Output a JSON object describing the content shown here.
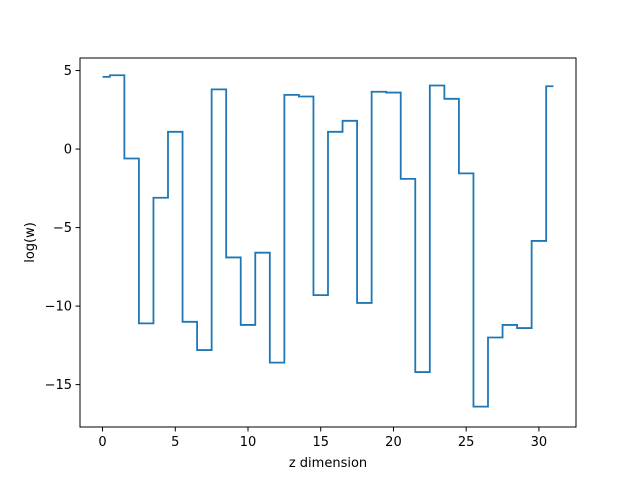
{
  "chart_data": {
    "type": "line",
    "drawstyle": "steps-mid",
    "title": "",
    "xlabel": "z dimension",
    "ylabel": "log(w)",
    "xlim": [
      -1.55,
      32.55
    ],
    "ylim": [
      -17.7,
      5.8
    ],
    "xticks": [
      0,
      5,
      10,
      15,
      20,
      25,
      30
    ],
    "yticks": [
      5,
      0,
      -5,
      -10,
      -15
    ],
    "xtick_labels": [
      "0",
      "5",
      "10",
      "15",
      "20",
      "25",
      "30"
    ],
    "ytick_labels": [
      "5",
      "0",
      "−5",
      "−10",
      "−15"
    ],
    "grid": false,
    "series": [
      {
        "color": "#1f77b4",
        "x": [
          0,
          1,
          2,
          3,
          4,
          5,
          6,
          7,
          8,
          9,
          10,
          11,
          12,
          13,
          14,
          15,
          16,
          17,
          18,
          19,
          20,
          21,
          22,
          23,
          24,
          25,
          26,
          27,
          28,
          29,
          30,
          31
        ],
        "y": [
          4.6,
          4.7,
          -0.6,
          -11.1,
          -3.1,
          1.1,
          -11.0,
          -12.8,
          3.8,
          -6.9,
          -11.2,
          -6.6,
          -13.6,
          3.45,
          3.35,
          -9.3,
          1.1,
          1.8,
          -9.8,
          3.65,
          3.6,
          -1.9,
          -14.2,
          4.05,
          3.2,
          -1.55,
          -16.4,
          -12.0,
          -11.2,
          -11.4,
          -5.85,
          4.0
        ]
      }
    ]
  }
}
